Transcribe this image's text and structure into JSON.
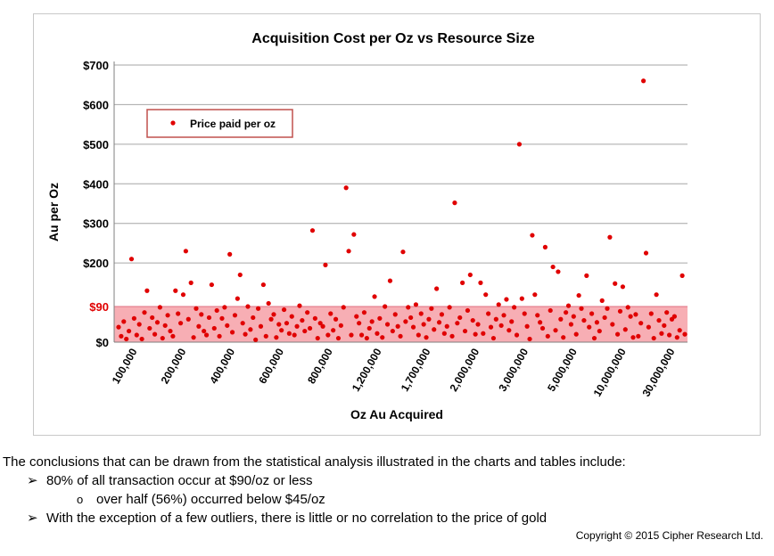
{
  "chart_data": {
    "type": "scatter",
    "title": "Acquisition Cost per Oz vs Resource Size",
    "xlabel": "Oz Au Acquired",
    "ylabel": "Au per Oz",
    "y_ticks": [
      "$0",
      "$90",
      "$200",
      "$300",
      "$400",
      "$500",
      "$600",
      "$700"
    ],
    "y_tick_values": [
      0,
      90,
      200,
      300,
      400,
      500,
      600,
      700
    ],
    "x_ticks": [
      "100,000",
      "200,000",
      "400,000",
      "600,000",
      "800,000",
      "1,200,000",
      "1,700,000",
      "2,000,000",
      "3,000,000",
      "5,000,000",
      "10,000,000",
      "30,000,000"
    ],
    "ylim": [
      0,
      700
    ],
    "highlight_band": {
      "from": 0,
      "to": 90,
      "label": "$90",
      "color": "#f7aeb4"
    },
    "legend": {
      "label": "Price paid per oz",
      "position": "top-left"
    },
    "series": [
      {
        "name": "Price paid per oz",
        "color": "#e00000",
        "note": "x = rank of transaction sorted by ounces acquired (axis is categorical, tick labels shown at intervals)",
        "x": [
          1,
          2,
          3,
          4,
          5,
          6,
          7,
          8,
          9,
          10,
          11,
          12,
          13,
          14,
          15,
          16,
          17,
          18,
          19,
          20,
          21,
          22,
          23,
          24,
          25,
          26,
          27,
          28,
          29,
          30,
          31,
          32,
          33,
          34,
          35,
          36,
          37,
          38,
          39,
          40,
          41,
          42,
          43,
          44,
          45,
          46,
          47,
          48,
          49,
          50,
          51,
          52,
          53,
          54,
          55,
          56,
          57,
          58,
          59,
          60,
          61,
          62,
          63,
          64,
          65,
          66,
          67,
          68,
          69,
          70,
          71,
          72,
          73,
          74,
          75,
          76,
          77,
          78,
          79,
          80,
          81,
          82,
          83,
          84,
          85,
          86,
          87,
          88,
          89,
          90,
          91,
          92,
          93,
          94,
          95,
          96,
          97,
          98,
          99,
          100,
          101,
          102,
          103,
          104,
          105,
          106,
          107,
          108,
          109,
          110,
          111,
          112,
          113,
          114,
          115,
          116,
          117,
          118,
          119,
          120,
          121,
          122,
          123,
          124,
          125,
          126,
          127,
          128,
          129,
          130,
          131,
          132,
          133,
          134,
          135,
          136,
          137,
          138,
          139,
          140,
          141,
          142,
          143,
          144,
          145,
          146,
          147,
          148,
          149,
          150,
          151,
          152,
          153,
          154,
          155,
          156,
          157,
          158,
          159,
          160,
          161,
          162,
          163,
          164,
          165,
          166,
          167,
          168,
          169,
          170,
          171,
          172,
          173,
          174,
          175,
          176,
          177,
          178,
          179,
          180,
          181,
          182,
          183,
          184,
          185,
          186,
          187,
          188,
          189,
          190,
          191,
          192,
          193,
          194,
          195,
          196,
          197,
          198,
          199,
          200,
          201,
          202,
          203,
          204,
          205,
          206,
          207,
          208,
          209,
          210,
          211,
          212,
          213,
          214,
          215,
          216,
          217,
          218,
          219,
          220
        ],
        "values": [
          38,
          15,
          52,
          8,
          28,
          210,
          60,
          18,
          45,
          8,
          75,
          130,
          35,
          62,
          20,
          50,
          88,
          10,
          42,
          68,
          28,
          15,
          130,
          72,
          48,
          120,
          230,
          58,
          150,
          12,
          85,
          40,
          70,
          28,
          18,
          62,
          145,
          35,
          80,
          15,
          60,
          88,
          42,
          222,
          25,
          68,
          110,
          170,
          48,
          20,
          90,
          32,
          62,
          6,
          85,
          40,
          145,
          15,
          98,
          58,
          70,
          12,
          45,
          30,
          82,
          48,
          22,
          65,
          18,
          40,
          92,
          55,
          28,
          75,
          35,
          282,
          60,
          10,
          48,
          40,
          195,
          18,
          72,
          30,
          58,
          10,
          42,
          88,
          390,
          230,
          18,
          272,
          65,
          48,
          18,
          75,
          10,
          35,
          52,
          115,
          22,
          60,
          12,
          90,
          45,
          155,
          28,
          70,
          40,
          15,
          228,
          52,
          88,
          62,
          38,
          95,
          18,
          72,
          45,
          12,
          58,
          85,
          32,
          135,
          50,
          70,
          22,
          40,
          88,
          15,
          352,
          48,
          62,
          150,
          28,
          80,
          170,
          55,
          20,
          45,
          150,
          22,
          120,
          72,
          38,
          10,
          58,
          95,
          42,
          68,
          108,
          30,
          52,
          88,
          18,
          500,
          110,
          72,
          40,
          8,
          270,
          120,
          68,
          50,
          35,
          240,
          15,
          80,
          190,
          30,
          178,
          58,
          12,
          75,
          92,
          45,
          65,
          20,
          118,
          85,
          55,
          168,
          38,
          72,
          10,
          50,
          28,
          105,
          62,
          85,
          265,
          45,
          148,
          20,
          78,
          140,
          32,
          88,
          65,
          12,
          70,
          15,
          48,
          660,
          225,
          38,
          72,
          10,
          120,
          55,
          22,
          42,
          75,
          18,
          58,
          65,
          12,
          30,
          168,
          20
        ]
      }
    ]
  },
  "conclusions": {
    "intro": "The conclusions that can be drawn from the statistical analysis illustrated in the charts and tables include:",
    "bullet1_marker": "➢",
    "bullet1": "80% of all transaction occur at $90/oz or less",
    "sub_marker": "o",
    "sub1": "over half (56%) occurred below $45/oz",
    "bullet2_marker": "➢",
    "bullet2": "With the exception of a few outliers, there is little or no correlation to the price of gold"
  },
  "copyright": "Copyright © 2015 Cipher Research Ltd."
}
